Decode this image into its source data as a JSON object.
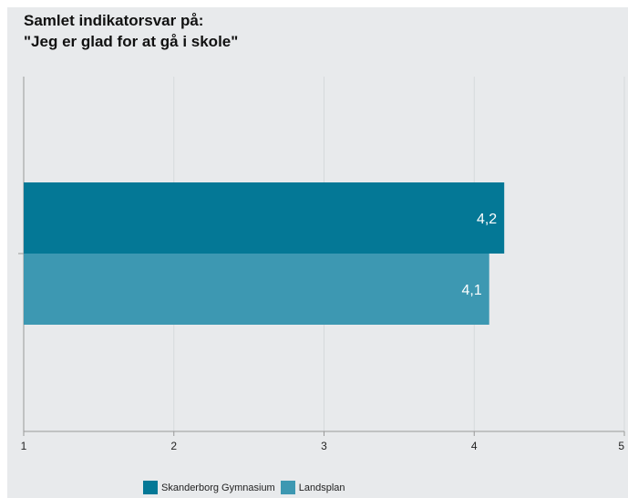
{
  "chart_data": {
    "type": "bar",
    "orientation": "horizontal",
    "title": "Samlet indikatorsvar på:",
    "subtitle": "\"Jeg er glad for at gå i skole\"",
    "series": [
      {
        "name": "Skanderborg Gymnasium",
        "values": [
          4.2
        ],
        "label": "4,2",
        "color": "#047896"
      },
      {
        "name": "Landsplan",
        "values": [
          4.1
        ],
        "label": "4,1",
        "color": "#3d98b2"
      }
    ],
    "xlim": [
      1,
      5
    ],
    "xticks": [
      "1",
      "2",
      "3",
      "4",
      "5"
    ],
    "grid": true,
    "legend_position": "bottom"
  }
}
